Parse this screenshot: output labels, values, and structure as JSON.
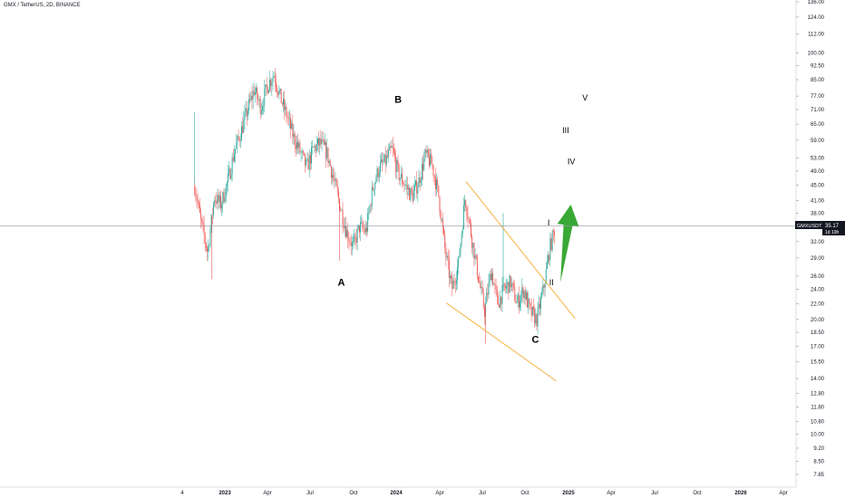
{
  "header": {
    "title": "GMX / TetherUS, 2D, BINANCE"
  },
  "price_tag": {
    "symbol": "GMXUSDT",
    "price": "35.17",
    "countdown": "1d 19h"
  },
  "colors": {
    "up": "#26a69a",
    "down": "#ef5350",
    "channel": "#f5b342",
    "arrow": "#3aa835",
    "grid": "#e0e3eb"
  },
  "chart_data": {
    "type": "candlestick",
    "scale": "log",
    "y_ticks": [
      "136.00",
      "124.00",
      "112.00",
      "100.00",
      "92.50",
      "85.00",
      "77.00",
      "71.00",
      "65.00",
      "59.00",
      "53.00",
      "49.00",
      "45.00",
      "41.00",
      "38.00",
      "32.00",
      "29.00",
      "26.00",
      "24.00",
      "22.00",
      "20.00",
      "18.50",
      "17.00",
      "15.50",
      "14.00",
      "12.80",
      "11.80",
      "10.80",
      "10.00",
      "9.20",
      "8.50",
      "7.85"
    ],
    "x_ticks": [
      {
        "label": "4",
        "bold": false
      },
      {
        "label": "2023",
        "bold": true
      },
      {
        "label": "Apr",
        "bold": false
      },
      {
        "label": "Jul",
        "bold": false
      },
      {
        "label": "Oct",
        "bold": false
      },
      {
        "label": "2024",
        "bold": true
      },
      {
        "label": "Apr",
        "bold": false
      },
      {
        "label": "Jul",
        "bold": false
      },
      {
        "label": "Oct",
        "bold": false
      },
      {
        "label": "2025",
        "bold": true
      },
      {
        "label": "Apr",
        "bold": false
      },
      {
        "label": "Jul",
        "bold": false
      },
      {
        "label": "Oct",
        "bold": false
      },
      {
        "label": "2026",
        "bold": true
      },
      {
        "label": "Apr",
        "bold": false
      }
    ],
    "last_price": 35.17,
    "price_path": [
      [
        "2022-10-30",
        45
      ],
      [
        "2022-11-12",
        36
      ],
      [
        "2022-11-26",
        30
      ],
      [
        "2022-12-10",
        42
      ],
      [
        "2022-12-24",
        40
      ],
      [
        "2023-01-07",
        46
      ],
      [
        "2023-01-21",
        55
      ],
      [
        "2023-02-04",
        62
      ],
      [
        "2023-02-18",
        71
      ],
      [
        "2023-03-04",
        80
      ],
      [
        "2023-03-18",
        72
      ],
      [
        "2023-04-01",
        82
      ],
      [
        "2023-04-15",
        88
      ],
      [
        "2023-04-29",
        76
      ],
      [
        "2023-05-13",
        68
      ],
      [
        "2023-05-27",
        60
      ],
      [
        "2023-06-10",
        55
      ],
      [
        "2023-06-24",
        50
      ],
      [
        "2023-07-08",
        56
      ],
      [
        "2023-07-22",
        58
      ],
      [
        "2023-08-05",
        55
      ],
      [
        "2023-08-19",
        47
      ],
      [
        "2023-09-02",
        40
      ],
      [
        "2023-09-16",
        34
      ],
      [
        "2023-09-30",
        31
      ],
      [
        "2023-10-14",
        35
      ],
      [
        "2023-10-28",
        34
      ],
      [
        "2023-11-11",
        44
      ],
      [
        "2023-11-25",
        50
      ],
      [
        "2023-12-09",
        52
      ],
      [
        "2023-12-23",
        56
      ],
      [
        "2024-01-06",
        48
      ],
      [
        "2024-01-20",
        45
      ],
      [
        "2024-02-03",
        42
      ],
      [
        "2024-02-17",
        46
      ],
      [
        "2024-03-02",
        54
      ],
      [
        "2024-03-16",
        51
      ],
      [
        "2024-03-30",
        42
      ],
      [
        "2024-04-13",
        30
      ],
      [
        "2024-04-27",
        24
      ],
      [
        "2024-05-11",
        28
      ],
      [
        "2024-05-25",
        42
      ],
      [
        "2024-06-08",
        33
      ],
      [
        "2024-06-22",
        26
      ],
      [
        "2024-07-06",
        21
      ],
      [
        "2024-07-20",
        27
      ],
      [
        "2024-08-03",
        22
      ],
      [
        "2024-08-17",
        24
      ],
      [
        "2024-08-31",
        25
      ],
      [
        "2024-09-14",
        22
      ],
      [
        "2024-09-28",
        24
      ],
      [
        "2024-10-12",
        21
      ],
      [
        "2024-10-26",
        20
      ],
      [
        "2024-11-09",
        24
      ],
      [
        "2024-11-23",
        31
      ],
      [
        "2024-12-04",
        35
      ]
    ],
    "annotations": {
      "wave_labels": [
        {
          "text": "A",
          "date": "2023-09-05",
          "price": 24.5,
          "size": "big"
        },
        {
          "text": "B",
          "date": "2024-01-05",
          "price": 74.0,
          "size": "big"
        },
        {
          "text": "C",
          "date": "2024-10-23",
          "price": 17.4,
          "size": "big"
        },
        {
          "text": "I",
          "date": "2024-11-20",
          "price": 35.3,
          "size": "small"
        },
        {
          "text": "II",
          "date": "2024-11-26",
          "price": 24.6,
          "size": "small"
        },
        {
          "text": "III",
          "date": "2024-12-26",
          "price": 61.5,
          "size": "small"
        },
        {
          "text": "IV",
          "date": "2025-01-07",
          "price": 51.0,
          "size": "small"
        },
        {
          "text": "V",
          "date": "2025-02-05",
          "price": 75.0,
          "size": "small"
        }
      ],
      "channel": {
        "upper": [
          [
            "2024-05-27",
            46.0
          ],
          [
            "2025-01-15",
            20.1
          ]
        ],
        "lower": [
          [
            "2024-04-15",
            22.1
          ],
          [
            "2024-12-06",
            13.8
          ]
        ]
      },
      "arrow": {
        "from": [
          "2024-12-15",
          25.0
        ],
        "to": [
          "2025-01-06",
          40.0
        ]
      }
    }
  }
}
